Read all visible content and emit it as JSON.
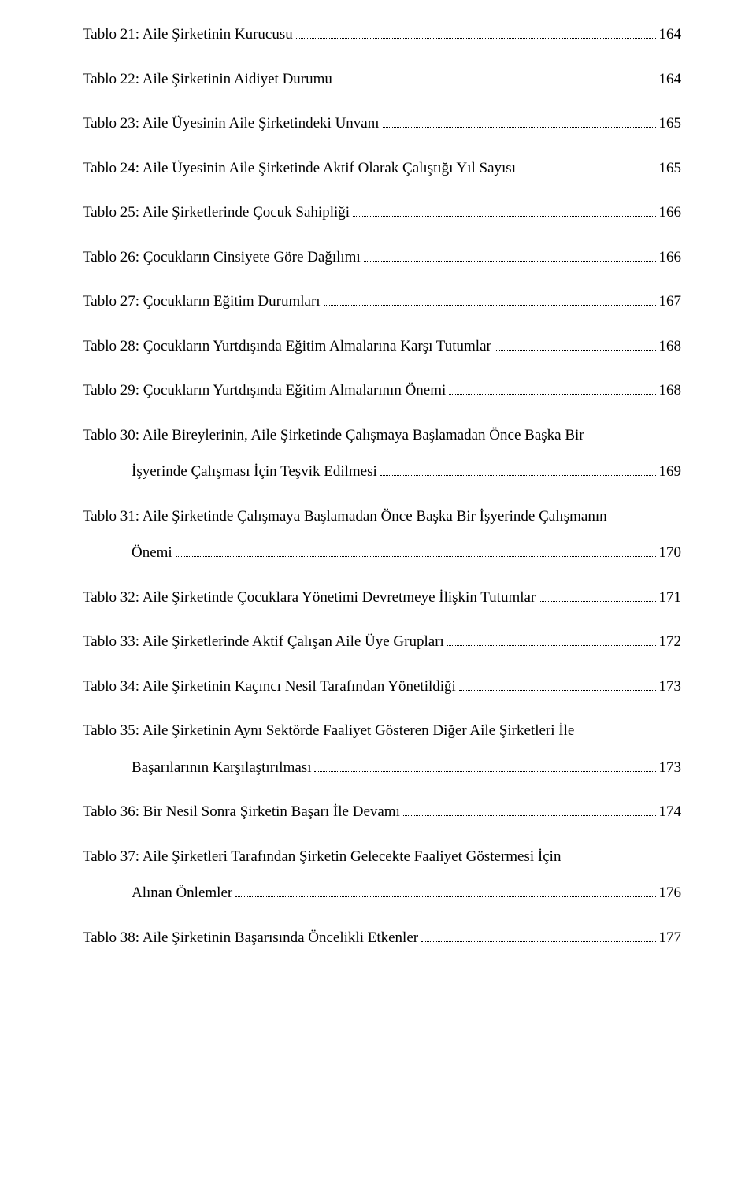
{
  "entries": [
    {
      "title": "Tablo 21: Aile Şirketinin Kurucusu",
      "page": "164"
    },
    {
      "title": "Tablo 22: Aile Şirketinin Aidiyet Durumu",
      "page": "164"
    },
    {
      "title": "Tablo 23: Aile Üyesinin Aile Şirketindeki Unvanı",
      "page": "165"
    },
    {
      "title": "Tablo 24: Aile Üyesinin Aile Şirketinde Aktif Olarak  Çalıştığı Yıl Sayısı",
      "page": "165"
    },
    {
      "title": "Tablo 25: Aile Şirketlerinde Çocuk Sahipliği",
      "page": "166"
    },
    {
      "title": "Tablo 26: Çocukların Cinsiyete Göre Dağılımı",
      "page": "166"
    },
    {
      "title": "Tablo 27: Çocukların Eğitim Durumları",
      "page": "167"
    },
    {
      "title": "Tablo 28: Çocukların Yurtdışında Eğitim Almalarına  Karşı Tutumlar",
      "page": "168"
    },
    {
      "title": "Tablo 29: Çocukların Yurtdışında Eğitim Almalarının Önemi",
      "page": "168"
    },
    {
      "title": "Tablo 30: Aile Bireylerinin, Aile Şirketinde Çalışmaya Başlamadan Önce Başka Bir",
      "cont": "İşyerinde Çalışması İçin Teşvik Edilmesi",
      "page": "169"
    },
    {
      "title": "Tablo 31: Aile Şirketinde Çalışmaya Başlamadan Önce Başka Bir İşyerinde Çalışmanın",
      "cont": "Önemi",
      "page": "170"
    },
    {
      "title": "Tablo 32: Aile Şirketinde Çocuklara Yönetimi Devretmeye İlişkin Tutumlar",
      "page": "171"
    },
    {
      "title": "Tablo 33: Aile Şirketlerinde Aktif Çalışan Aile Üye Grupları",
      "page": "172"
    },
    {
      "title": "Tablo 34: Aile Şirketinin Kaçıncı Nesil Tarafından Yönetildiği",
      "page": "173"
    },
    {
      "title": "Tablo 35: Aile Şirketinin Aynı Sektörde Faaliyet Gösteren Diğer Aile Şirketleri İle",
      "cont": "Başarılarının Karşılaştırılması",
      "page": "173"
    },
    {
      "title": "Tablo 36: Bir Nesil Sonra Şirketin Başarı İle Devamı",
      "page": "174"
    },
    {
      "title": "Tablo 37: Aile Şirketleri Tarafından Şirketin Gelecekte Faaliyet Göstermesi İçin",
      "cont": "Alınan Önlemler",
      "page": "176"
    },
    {
      "title": "Tablo 38: Aile Şirketinin Başarısında Öncelikli Etkenler",
      "page": "177"
    }
  ]
}
